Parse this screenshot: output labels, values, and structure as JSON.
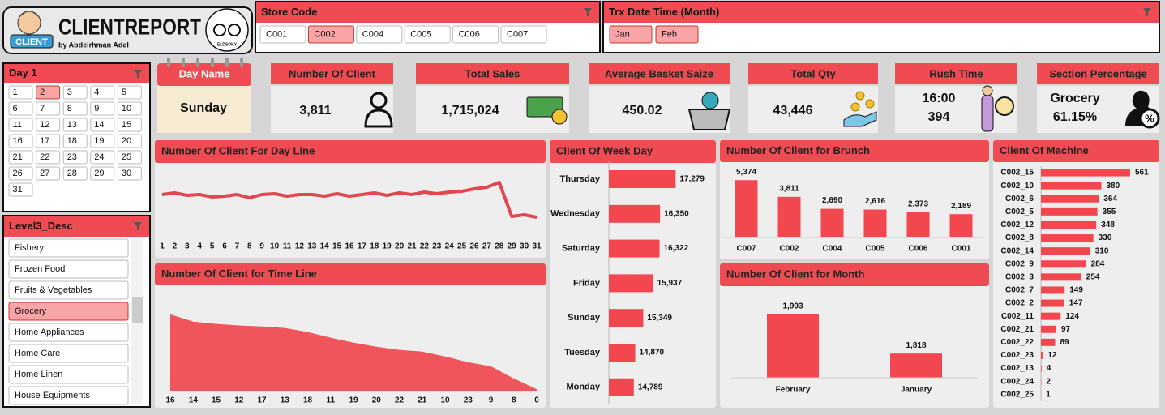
{
  "logo": {
    "title": "CLIENTREPORT",
    "byline": "by Abdelrhman Adel",
    "badge": "CLIENT",
    "emblem": "ELDSOKY"
  },
  "slicers": [
    {
      "title": "Store Code",
      "items": [
        {
          "label": "C001",
          "selected": false
        },
        {
          "label": "C002",
          "selected": true
        },
        {
          "label": "C004",
          "selected": false
        },
        {
          "label": "C005",
          "selected": false
        },
        {
          "label": "C006",
          "selected": false
        },
        {
          "label": "C007",
          "selected": false
        }
      ]
    },
    {
      "title": "Trx Date Time (Month)",
      "items": [
        {
          "label": "Jan",
          "selected": true
        },
        {
          "label": "Feb",
          "selected": true
        }
      ]
    },
    {
      "title": "Day 1",
      "items": [
        {
          "label": "1",
          "selected": false
        },
        {
          "label": "2",
          "selected": true
        },
        {
          "label": "3",
          "selected": false
        },
        {
          "label": "4",
          "selected": false
        },
        {
          "label": "5",
          "selected": false
        },
        {
          "label": "6",
          "selected": false
        },
        {
          "label": "7",
          "selected": false
        },
        {
          "label": "8",
          "selected": false
        },
        {
          "label": "9",
          "selected": false
        },
        {
          "label": "10",
          "selected": false
        },
        {
          "label": "11",
          "selected": false
        },
        {
          "label": "12",
          "selected": false
        },
        {
          "label": "13",
          "selected": false
        },
        {
          "label": "14",
          "selected": false
        },
        {
          "label": "15",
          "selected": false
        },
        {
          "label": "16",
          "selected": false
        },
        {
          "label": "17",
          "selected": false
        },
        {
          "label": "18",
          "selected": false
        },
        {
          "label": "19",
          "selected": false
        },
        {
          "label": "20",
          "selected": false
        },
        {
          "label": "21",
          "selected": false
        },
        {
          "label": "22",
          "selected": false
        },
        {
          "label": "23",
          "selected": false
        },
        {
          "label": "24",
          "selected": false
        },
        {
          "label": "25",
          "selected": false
        },
        {
          "label": "26",
          "selected": false
        },
        {
          "label": "27",
          "selected": false
        },
        {
          "label": "28",
          "selected": false
        },
        {
          "label": "29",
          "selected": false
        },
        {
          "label": "30",
          "selected": false
        },
        {
          "label": "31",
          "selected": false
        }
      ]
    },
    {
      "title": "Level3_Desc",
      "items": [
        {
          "label": "Fishery",
          "selected": false
        },
        {
          "label": "Frozen Food",
          "selected": false
        },
        {
          "label": "Fruits & Vegetables",
          "selected": false
        },
        {
          "label": "Grocery",
          "selected": true
        },
        {
          "label": "Home Appliances",
          "selected": false
        },
        {
          "label": "Home Care",
          "selected": false
        },
        {
          "label": "Home Linen",
          "selected": false
        },
        {
          "label": "House Equipments",
          "selected": false
        }
      ]
    }
  ],
  "kpis": [
    {
      "title": "Day Name",
      "lines": [
        "Sunday"
      ]
    },
    {
      "title": "Number Of Client",
      "lines": [
        "3,811"
      ]
    },
    {
      "title": "Total Sales",
      "lines": [
        "1,715,024"
      ]
    },
    {
      "title": "Average Basket Saize",
      "lines": [
        "450.02"
      ]
    },
    {
      "title": "Total Qty",
      "lines": [
        "43,446"
      ]
    },
    {
      "title": "Rush Time",
      "lines": [
        "16:00",
        "394"
      ]
    },
    {
      "title": "Section Percentage",
      "lines": [
        "Grocery",
        "61.15%"
      ]
    }
  ],
  "chart_data": [
    {
      "type": "line",
      "title": "Number Of Client For Day Line",
      "categories": [
        "1",
        "2",
        "3",
        "4",
        "5",
        "6",
        "7",
        "8",
        "9",
        "10",
        "11",
        "12",
        "13",
        "14",
        "15",
        "16",
        "17",
        "18",
        "19",
        "20",
        "21",
        "22",
        "23",
        "24",
        "25",
        "26",
        "27",
        "28",
        "29",
        "30",
        "31"
      ],
      "values": [
        60,
        62,
        59,
        60,
        57,
        58,
        60,
        56,
        60,
        61,
        58,
        60,
        60,
        58,
        61,
        58,
        60,
        62,
        59,
        62,
        60,
        63,
        61,
        63,
        64,
        67,
        69,
        75,
        33,
        35,
        32
      ],
      "color": "#e0474f",
      "ylim": [
        10,
        95
      ]
    },
    {
      "type": "area",
      "title": "Number Of Client for Time Line",
      "categories": [
        "16",
        "14",
        "15",
        "12",
        "17",
        "13",
        "18",
        "11",
        "19",
        "20",
        "22",
        "21",
        "10",
        "23",
        "9",
        "8",
        "0"
      ],
      "values": [
        394,
        357,
        345,
        337,
        332,
        324,
        303,
        274,
        248,
        227,
        211,
        202,
        177,
        147,
        126,
        63,
        8
      ],
      "color": "#f0555b",
      "ylim": [
        0,
        490
      ]
    },
    {
      "type": "bar",
      "horizontal": true,
      "title": "Client Of Week Day",
      "categories": [
        "Thursday",
        "Wednesday",
        "Saturday",
        "Friday",
        "Sunday",
        "Tuesday",
        "Monday"
      ],
      "values": [
        17279,
        16350,
        16322,
        15937,
        15349,
        14870,
        14789
      ],
      "value_labels": [
        "17,279",
        "16,350",
        "16,322",
        "15,937",
        "15,349",
        "14,870",
        "14,789"
      ],
      "color": "#f2474f",
      "xlim": [
        13300,
        17600
      ]
    },
    {
      "type": "bar",
      "title": "Number Of Client for Brunch",
      "categories": [
        "C007",
        "C002",
        "C004",
        "C005",
        "C006",
        "C001"
      ],
      "values": [
        5374,
        3811,
        2690,
        2616,
        2373,
        2189
      ],
      "value_labels": [
        "5,374",
        "3,811",
        "2,690",
        "2,616",
        "2,373",
        "2,189"
      ],
      "color": "#f2474f",
      "ylim": [
        0,
        6000
      ]
    },
    {
      "type": "bar",
      "title": "Number Of Client for Month",
      "categories": [
        "February",
        "January"
      ],
      "values": [
        1993,
        1818
      ],
      "value_labels": [
        "1,993",
        "1,818"
      ],
      "color": "#f2474f",
      "ylim": [
        1710,
        2000
      ]
    },
    {
      "type": "bar",
      "horizontal": true,
      "title": "Client Of Machine",
      "categories": [
        "C002_15",
        "C002_10",
        "C002_6",
        "C002_5",
        "C002_12",
        "C002_8",
        "C002_14",
        "C002_9",
        "C002_3",
        "C002_7",
        "C002_2",
        "C002_11",
        "C002_21",
        "C002_22",
        "C002_23",
        "C002_13",
        "C002_24",
        "C002_25"
      ],
      "values": [
        561,
        380,
        364,
        355,
        348,
        330,
        310,
        284,
        254,
        149,
        147,
        124,
        97,
        89,
        12,
        4,
        2,
        1
      ],
      "color": "#f2474f",
      "xlim": [
        0,
        600
      ]
    }
  ]
}
